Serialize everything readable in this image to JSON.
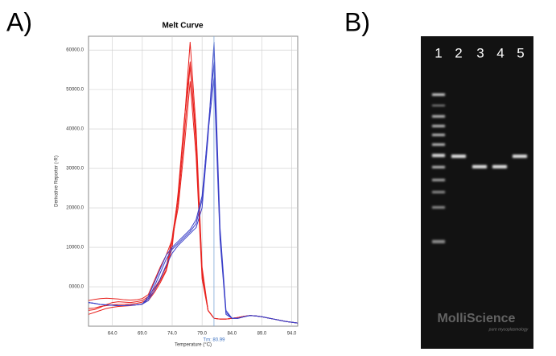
{
  "panel_labels": [
    "A)",
    "B)"
  ],
  "chart_data": {
    "type": "line",
    "title": "Melt Curve",
    "x_label": "Temperature (°C)",
    "y_label": "Derivative Reporter (-R)",
    "x": [
      60,
      61,
      62,
      63,
      64,
      65,
      66,
      67,
      68,
      69,
      70,
      71,
      72,
      73,
      74,
      75,
      76,
      77,
      78,
      79,
      80,
      81,
      82,
      83,
      84,
      85,
      86,
      87,
      88,
      89,
      90,
      91,
      92,
      93,
      94,
      95
    ],
    "series": [
      {
        "color": "#e8221e",
        "values": [
          -5500,
          -5400,
          -5000,
          -4800,
          -4600,
          -4500,
          -4500,
          -4400,
          -4200,
          -3900,
          -3000,
          -1000,
          1500,
          4300,
          11400,
          21600,
          38000,
          56000,
          36000,
          3300,
          -6000,
          -8000,
          -8200,
          -8200,
          -8000,
          -7800,
          -7500,
          -7300,
          -7400,
          -7600,
          -7900,
          -8200,
          -8500,
          -8800,
          -9000,
          -9200
        ]
      },
      {
        "color": "#e8221e",
        "values": [
          -6000,
          -5800,
          -5200,
          -4500,
          -4000,
          -3800,
          -3900,
          -4000,
          -3800,
          -3500,
          -2500,
          -500,
          2000,
          5000,
          12500,
          23000,
          41000,
          62000,
          40000,
          5000,
          -6000,
          -8000,
          -8200,
          -8200,
          -8000,
          -7800,
          -7500,
          -7300,
          -7400,
          -7600,
          -7900,
          -8200,
          -8500,
          -8800,
          -9000,
          -9200
        ]
      },
      {
        "color": "#e8221e",
        "values": [
          -3500,
          -3200,
          -3000,
          -2900,
          -3000,
          -3100,
          -3300,
          -3400,
          -3300,
          -3000,
          -2000,
          1500,
          5000,
          8000,
          12000,
          20000,
          35000,
          52000,
          33000,
          2000,
          -6000,
          -8000,
          -8200,
          -8200,
          -8000,
          -7800,
          -7500,
          -7300,
          -7400,
          -7600,
          -7900,
          -8200,
          -8500,
          -8800,
          -9000,
          -9200
        ]
      },
      {
        "color": "#e8221e",
        "values": [
          -7000,
          -6500,
          -6000,
          -5500,
          -5200,
          -5000,
          -4900,
          -4800,
          -4600,
          -4300,
          -3500,
          -1500,
          1000,
          4000,
          10000,
          24000,
          42000,
          57000,
          38000,
          4000,
          -6000,
          -8000,
          -8200,
          -8200,
          -8000,
          -7800,
          -7500,
          -7300,
          -7400,
          -7600,
          -7900,
          -8200,
          -8500,
          -8800,
          -9000,
          -9200
        ]
      },
      {
        "color": "#3a3fc8",
        "values": [
          -4000,
          -4200,
          -4500,
          -4600,
          -4700,
          -4800,
          -4800,
          -4700,
          -4600,
          -4400,
          -3500,
          -1000,
          2000,
          5500,
          8500,
          10500,
          12000,
          13500,
          15000,
          20000,
          38000,
          62000,
          15000,
          -6000,
          -8000,
          -8000,
          -7600,
          -7300,
          -7400,
          -7600,
          -7900,
          -8200,
          -8500,
          -8800,
          -9000,
          -9200
        ]
      },
      {
        "color": "#3a3fc8",
        "values": [
          -4000,
          -4200,
          -4500,
          -4600,
          -4700,
          -4800,
          -4800,
          -4700,
          -4600,
          -4400,
          -3000,
          0,
          3500,
          7000,
          9500,
          11000,
          12500,
          14000,
          16000,
          22000,
          40000,
          57000,
          13000,
          -6500,
          -8000,
          -8000,
          -7600,
          -7300,
          -7400,
          -7600,
          -7900,
          -8200,
          -8500,
          -8800,
          -9000,
          -9200
        ]
      },
      {
        "color": "#3a3fc8",
        "values": [
          -4000,
          -4200,
          -4500,
          -4600,
          -4700,
          -4800,
          -4800,
          -4700,
          -4600,
          -4400,
          -2500,
          1000,
          4500,
          8000,
          10000,
          11500,
          13000,
          14500,
          17000,
          23000,
          39000,
          53000,
          12000,
          -7000,
          -8000,
          -8000,
          -7600,
          -7300,
          -7400,
          -7600,
          -7900,
          -8200,
          -8500,
          -8800,
          -9000,
          -9200
        ]
      }
    ],
    "xlim": [
      60,
      95
    ],
    "xticks": [
      {
        "value": 64,
        "label": "64.0"
      },
      {
        "value": 69,
        "label": "69.0"
      },
      {
        "value": 74,
        "label": "74.0"
      },
      {
        "value": 79,
        "label": "79.0"
      },
      {
        "value": 84,
        "label": "84.0"
      },
      {
        "value": 89,
        "label": "89.0"
      },
      {
        "value": 94,
        "label": "94.0"
      }
    ],
    "ylim": [
      -10000,
      63500
    ],
    "yticks": [
      {
        "value": 0,
        "label": "0000.0"
      },
      {
        "value": 10000,
        "label": "10000.0"
      },
      {
        "value": 20000,
        "label": "20000.0"
      },
      {
        "value": 30000,
        "label": "30000.0"
      },
      {
        "value": 40000,
        "label": "40000.0"
      },
      {
        "value": 50000,
        "label": "50000.0"
      },
      {
        "value": 60000,
        "label": "60000.0"
      }
    ],
    "grid": true,
    "tm": {
      "value": 80.99,
      "label": "Tm: 80.99"
    }
  },
  "gel": {
    "lane_labels": [
      "1",
      "2",
      "3",
      "4",
      "5"
    ],
    "watermark": "MolliScience",
    "tagline": "pure mycoplasmology"
  }
}
